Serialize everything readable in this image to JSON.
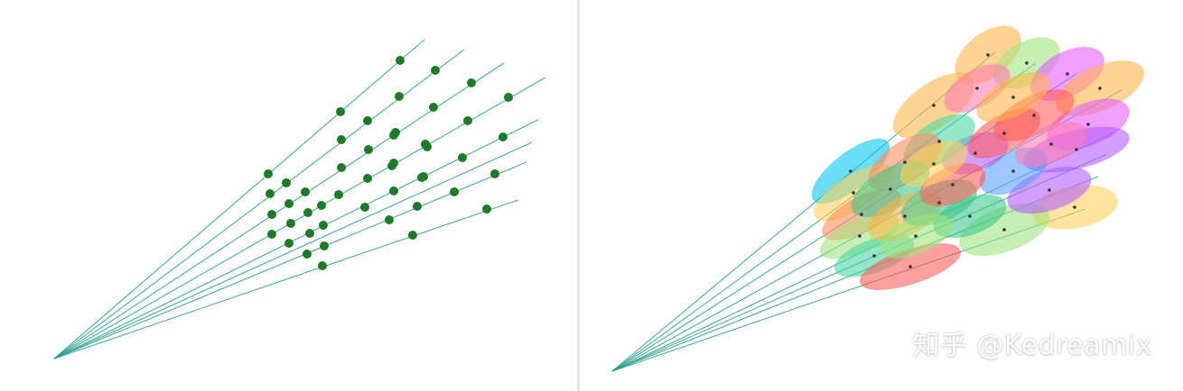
{
  "scene": {
    "colors": {
      "ray": "#2a9d8f",
      "point": "#1f7a26",
      "ellipse_center": "#333333"
    },
    "palette": [
      "#00c4ef",
      "#ffd15a",
      "#ff8a5b",
      "#9ee37c",
      "#e65aff",
      "#3bc68a",
      "#ff5a5a",
      "#b15aff",
      "#ffb347",
      "#5a9dff",
      "#ff7ab2",
      "#46d6a0"
    ]
  },
  "watermark": {
    "text": "知乎 @Kedreamix"
  }
}
